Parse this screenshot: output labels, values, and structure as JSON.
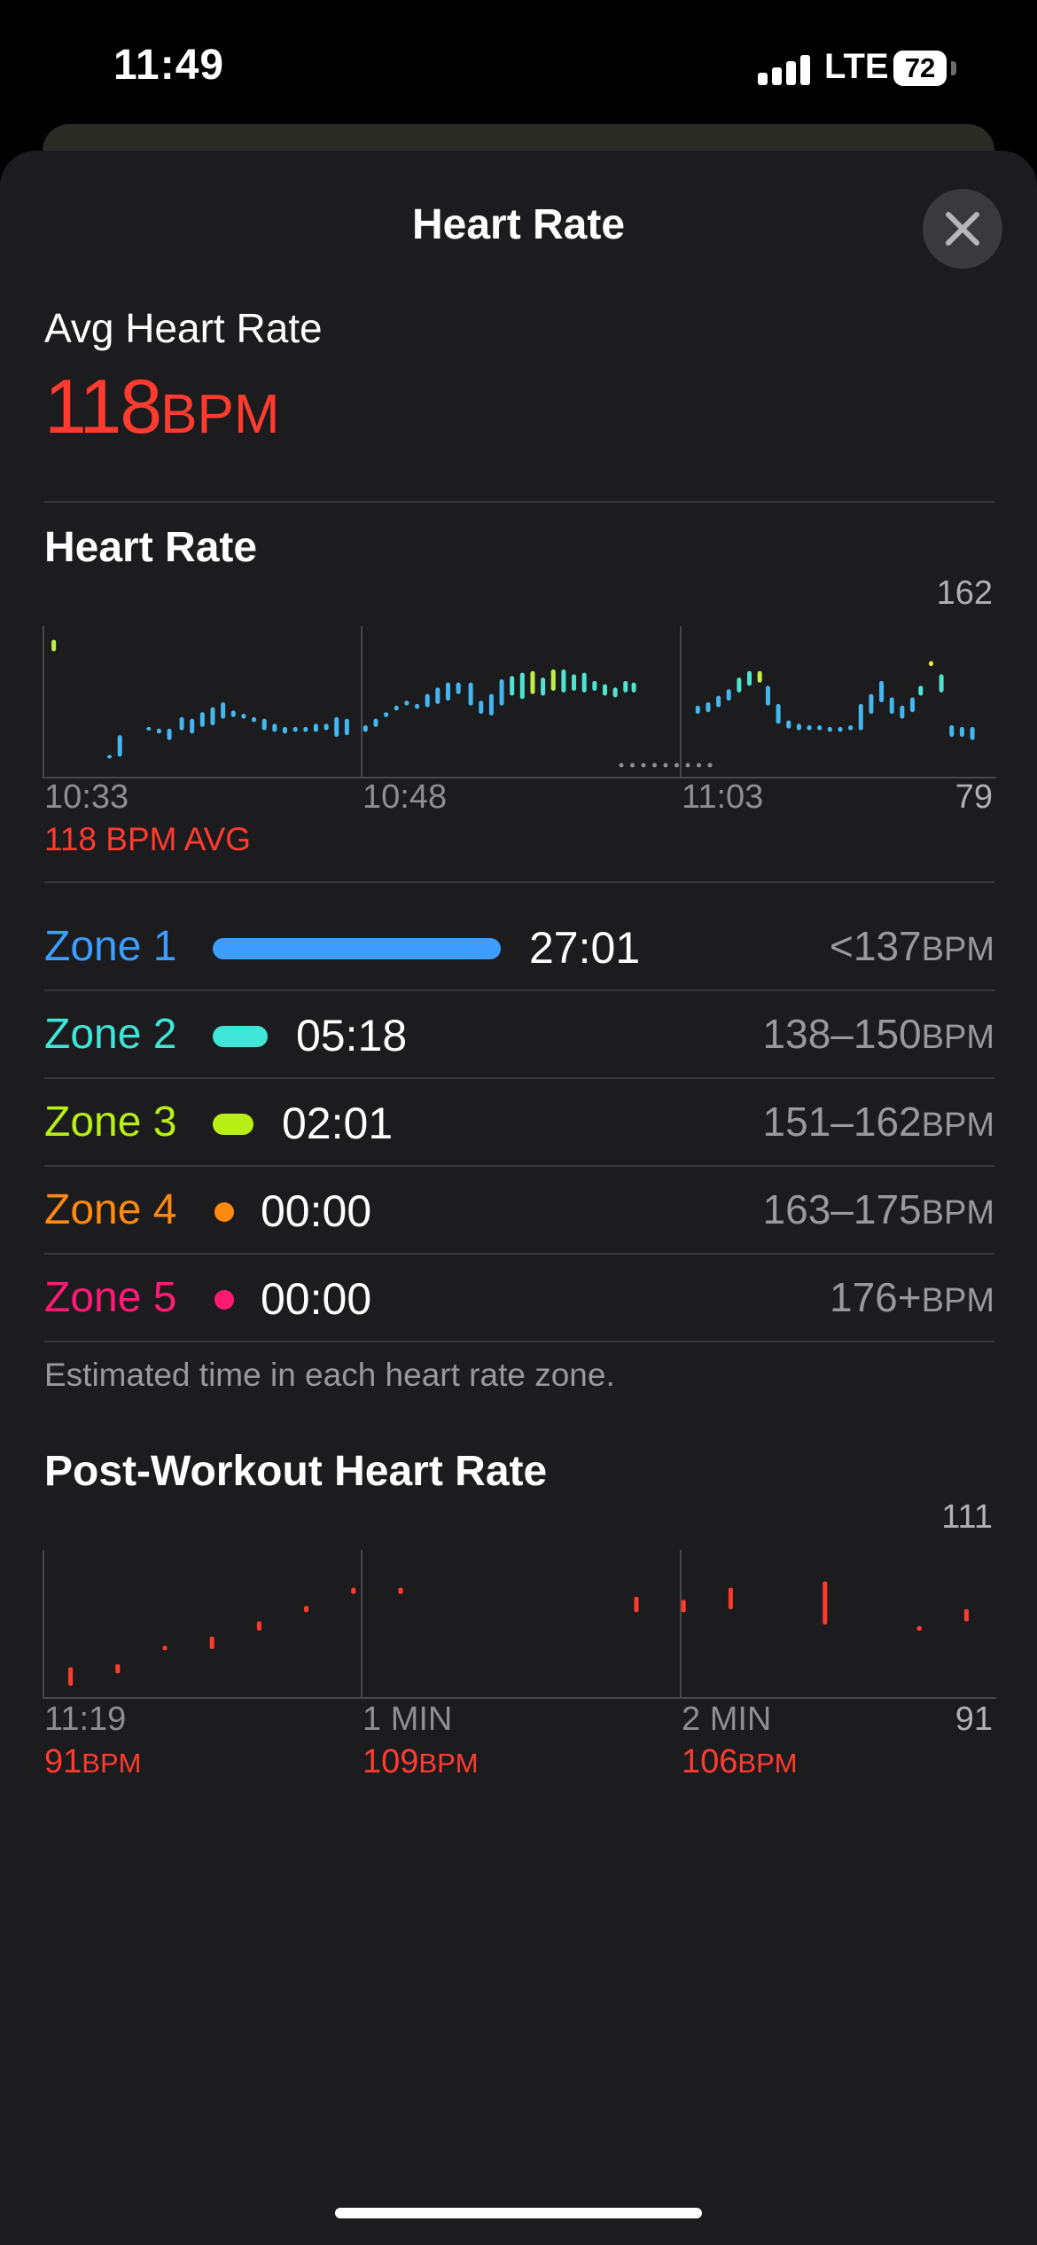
{
  "status_bar": {
    "time": "11:49",
    "network": "LTE",
    "battery": "72"
  },
  "sheet": {
    "title": "Heart Rate"
  },
  "summary": {
    "label": "Avg Heart Rate",
    "value": "118",
    "unit": "BPM"
  },
  "hr_section": {
    "title": "Heart Rate",
    "y_max": "162",
    "y_min": "79",
    "x_ticks": [
      "10:33",
      "10:48",
      "11:03"
    ],
    "avg_note": "118 BPM AVG"
  },
  "zones": [
    {
      "name": "Zone 1",
      "time": "27:01",
      "range": "<137",
      "unit": "BPM",
      "color": "#3d9eff",
      "share": 0.79
    },
    {
      "name": "Zone 2",
      "time": "05:18",
      "range": "138–150",
      "unit": "BPM",
      "color": "#3fe6d8",
      "share": 0.15
    },
    {
      "name": "Zone 3",
      "time": "02:01",
      "range": "151–162",
      "unit": "BPM",
      "color": "#b7ef16",
      "share": 0.06
    },
    {
      "name": "Zone 4",
      "time": "00:00",
      "range": "163–175",
      "unit": "BPM",
      "color": "#ff8a12",
      "share": 0
    },
    {
      "name": "Zone 5",
      "time": "00:00",
      "range": "176+",
      "unit": "BPM",
      "color": "#ff1b73",
      "share": 0
    }
  ],
  "zones_note": "Estimated time in each heart rate zone.",
  "post_section": {
    "title": "Post-Workout Heart Rate",
    "y_max": "111",
    "y_min": "91",
    "x_ticks": [
      "11:19",
      "1 MIN",
      "2 MIN"
    ],
    "readings": [
      {
        "value": "91",
        "unit": "BPM"
      },
      {
        "value": "109",
        "unit": "BPM"
      },
      {
        "value": "106",
        "unit": "BPM"
      }
    ]
  },
  "chart_data": [
    {
      "type": "bar",
      "title": "Heart Rate",
      "x_unit": "minutes from 10:33",
      "y_unit": "BPM",
      "ylim": [
        79,
        162
      ],
      "x_ticks": [
        "10:33",
        "10:48",
        "11:03"
      ],
      "average": 118,
      "zone_colors": {
        "z1": "#45b7f0",
        "z2": "#4fe3d2",
        "z3": "#bff04a",
        "z4": "#f2e24a"
      },
      "points": [
        {
          "x": 0.2,
          "lo": 152,
          "hi": 159,
          "z": "z3"
        },
        {
          "x": 2.9,
          "lo": 87,
          "hi": 89,
          "z": "z1"
        },
        {
          "x": 3.4,
          "lo": 88,
          "hi": 101,
          "z": "z1"
        },
        {
          "x": 4.8,
          "lo": 104,
          "hi": 106,
          "z": "z1"
        },
        {
          "x": 5.3,
          "lo": 102,
          "hi": 105,
          "z": "z1"
        },
        {
          "x": 5.8,
          "lo": 98,
          "hi": 105,
          "z": "z1"
        },
        {
          "x": 6.4,
          "lo": 104,
          "hi": 112,
          "z": "z1"
        },
        {
          "x": 6.9,
          "lo": 102,
          "hi": 111,
          "z": "z1"
        },
        {
          "x": 7.4,
          "lo": 106,
          "hi": 115,
          "z": "z1"
        },
        {
          "x": 7.9,
          "lo": 107,
          "hi": 118,
          "z": "z1"
        },
        {
          "x": 8.4,
          "lo": 111,
          "hi": 121,
          "z": "z1"
        },
        {
          "x": 8.9,
          "lo": 112,
          "hi": 116,
          "z": "z1"
        },
        {
          "x": 9.4,
          "lo": 111,
          "hi": 114,
          "z": "z1"
        },
        {
          "x": 9.9,
          "lo": 109,
          "hi": 112,
          "z": "z1"
        },
        {
          "x": 10.4,
          "lo": 104,
          "hi": 111,
          "z": "z1"
        },
        {
          "x": 10.9,
          "lo": 103,
          "hi": 108,
          "z": "z1"
        },
        {
          "x": 11.4,
          "lo": 102,
          "hi": 106,
          "z": "z1"
        },
        {
          "x": 11.9,
          "lo": 103,
          "hi": 106,
          "z": "z1"
        },
        {
          "x": 12.4,
          "lo": 103,
          "hi": 106,
          "z": "z1"
        },
        {
          "x": 12.9,
          "lo": 103,
          "hi": 108,
          "z": "z1"
        },
        {
          "x": 13.4,
          "lo": 104,
          "hi": 108,
          "z": "z1"
        },
        {
          "x": 13.9,
          "lo": 100,
          "hi": 112,
          "z": "z1"
        },
        {
          "x": 14.4,
          "lo": 101,
          "hi": 111,
          "z": "z1"
        },
        {
          "x": 15.3,
          "lo": 103,
          "hi": 107,
          "z": "z1"
        },
        {
          "x": 15.8,
          "lo": 106,
          "hi": 111,
          "z": "z1"
        },
        {
          "x": 16.3,
          "lo": 112,
          "hi": 115,
          "z": "z1"
        },
        {
          "x": 16.8,
          "lo": 116,
          "hi": 119,
          "z": "z1"
        },
        {
          "x": 17.3,
          "lo": 119,
          "hi": 122,
          "z": "z1"
        },
        {
          "x": 17.8,
          "lo": 117,
          "hi": 120,
          "z": "z1"
        },
        {
          "x": 18.3,
          "lo": 118,
          "hi": 126,
          "z": "z1"
        },
        {
          "x": 18.8,
          "lo": 120,
          "hi": 130,
          "z": "z1"
        },
        {
          "x": 19.3,
          "lo": 122,
          "hi": 133,
          "z": "z1"
        },
        {
          "x": 19.8,
          "lo": 126,
          "hi": 133,
          "z": "z1"
        },
        {
          "x": 20.4,
          "lo": 119,
          "hi": 133,
          "z": "z1"
        },
        {
          "x": 20.9,
          "lo": 114,
          "hi": 122,
          "z": "z1"
        },
        {
          "x": 21.4,
          "lo": 113,
          "hi": 126,
          "z": "z1"
        },
        {
          "x": 21.9,
          "lo": 119,
          "hi": 135,
          "z": "z1"
        },
        {
          "x": 22.4,
          "lo": 125,
          "hi": 137,
          "z": "z2"
        },
        {
          "x": 22.9,
          "lo": 123,
          "hi": 139,
          "z": "z2"
        },
        {
          "x": 23.4,
          "lo": 126,
          "hi": 140,
          "z": "z3"
        },
        {
          "x": 23.9,
          "lo": 125,
          "hi": 136,
          "z": "z2"
        },
        {
          "x": 24.4,
          "lo": 128,
          "hi": 141,
          "z": "z3"
        },
        {
          "x": 24.9,
          "lo": 127,
          "hi": 141,
          "z": "z2"
        },
        {
          "x": 25.4,
          "lo": 128,
          "hi": 138,
          "z": "z2"
        },
        {
          "x": 25.9,
          "lo": 127,
          "hi": 139,
          "z": "z2"
        },
        {
          "x": 26.4,
          "lo": 128,
          "hi": 134,
          "z": "z2"
        },
        {
          "x": 26.9,
          "lo": 125,
          "hi": 132,
          "z": "z2"
        },
        {
          "x": 27.4,
          "lo": 124,
          "hi": 130,
          "z": "z2"
        },
        {
          "x": 27.9,
          "lo": 127,
          "hi": 134,
          "z": "z2"
        },
        {
          "x": 28.3,
          "lo": 127,
          "hi": 133,
          "z": "z2"
        },
        {
          "x": 31.4,
          "lo": 114,
          "hi": 119,
          "z": "z1"
        },
        {
          "x": 31.9,
          "lo": 115,
          "hi": 121,
          "z": "z1"
        },
        {
          "x": 32.4,
          "lo": 118,
          "hi": 125,
          "z": "z1"
        },
        {
          "x": 32.9,
          "lo": 122,
          "hi": 129,
          "z": "z1"
        },
        {
          "x": 33.4,
          "lo": 127,
          "hi": 136,
          "z": "z2"
        },
        {
          "x": 33.9,
          "lo": 131,
          "hi": 140,
          "z": "z2"
        },
        {
          "x": 34.4,
          "lo": 133,
          "hi": 140,
          "z": "z3"
        },
        {
          "x": 34.8,
          "lo": 119,
          "hi": 131,
          "z": "z1"
        },
        {
          "x": 35.3,
          "lo": 108,
          "hi": 120,
          "z": "z1"
        },
        {
          "x": 35.8,
          "lo": 105,
          "hi": 110,
          "z": "z1"
        },
        {
          "x": 36.3,
          "lo": 104,
          "hi": 108,
          "z": "z1"
        },
        {
          "x": 36.8,
          "lo": 104,
          "hi": 107,
          "z": "z1"
        },
        {
          "x": 37.3,
          "lo": 104,
          "hi": 107,
          "z": "z1"
        },
        {
          "x": 37.8,
          "lo": 103,
          "hi": 106,
          "z": "z1"
        },
        {
          "x": 38.3,
          "lo": 103,
          "hi": 106,
          "z": "z1"
        },
        {
          "x": 38.8,
          "lo": 104,
          "hi": 107,
          "z": "z1"
        },
        {
          "x": 39.3,
          "lo": 104,
          "hi": 120,
          "z": "z1"
        },
        {
          "x": 39.8,
          "lo": 114,
          "hi": 126,
          "z": "z1"
        },
        {
          "x": 40.3,
          "lo": 121,
          "hi": 134,
          "z": "z1"
        },
        {
          "x": 40.8,
          "lo": 114,
          "hi": 124,
          "z": "z1"
        },
        {
          "x": 41.3,
          "lo": 111,
          "hi": 119,
          "z": "z1"
        },
        {
          "x": 41.8,
          "lo": 115,
          "hi": 124,
          "z": "z1"
        },
        {
          "x": 42.2,
          "lo": 125,
          "hi": 131,
          "z": "z2"
        },
        {
          "x": 42.7,
          "lo": 143,
          "hi": 146,
          "z": "z4"
        },
        {
          "x": 43.2,
          "lo": 127,
          "hi": 138,
          "z": "z2"
        },
        {
          "x": 43.7,
          "lo": 100,
          "hi": 107,
          "z": "z1"
        },
        {
          "x": 44.2,
          "lo": 100,
          "hi": 106,
          "z": "z1"
        },
        {
          "x": 44.7,
          "lo": 98,
          "hi": 106,
          "z": "z1"
        }
      ]
    },
    {
      "type": "bar",
      "title": "Post-Workout Heart Rate",
      "x_unit": "seconds after 11:19",
      "y_unit": "BPM",
      "ylim": [
        91,
        111
      ],
      "x_ticks": [
        "11:19",
        "1 MIN",
        "2 MIN"
      ],
      "color": "#ff3b30",
      "points": [
        {
          "x": 3,
          "lo": 92,
          "hi": 95
        },
        {
          "x": 9,
          "lo": 94,
          "hi": 95.5
        },
        {
          "x": 15,
          "lo": 98,
          "hi": 98.5
        },
        {
          "x": 21,
          "lo": 98,
          "hi": 100
        },
        {
          "x": 27,
          "lo": 101,
          "hi": 102.5
        },
        {
          "x": 33,
          "lo": 104,
          "hi": 105
        },
        {
          "x": 39,
          "lo": 107,
          "hi": 108
        },
        {
          "x": 45,
          "lo": 107,
          "hi": 108
        },
        {
          "x": 75,
          "lo": 104,
          "hi": 106.5
        },
        {
          "x": 81,
          "lo": 104,
          "hi": 106
        },
        {
          "x": 87,
          "lo": 104.5,
          "hi": 108
        },
        {
          "x": 99,
          "lo": 102,
          "hi": 109
        },
        {
          "x": 111,
          "lo": 101,
          "hi": 101.7
        },
        {
          "x": 117,
          "lo": 102.5,
          "hi": 104.5
        }
      ]
    }
  ]
}
